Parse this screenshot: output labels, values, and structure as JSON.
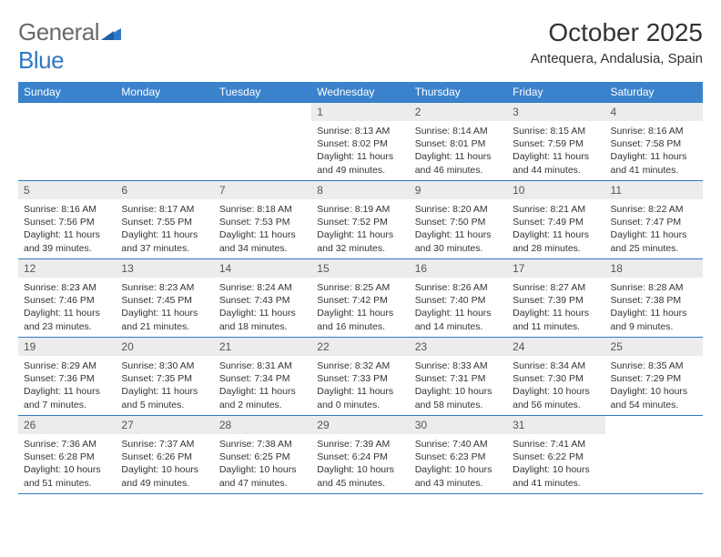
{
  "brand": {
    "name_part1": "General",
    "name_part2": "Blue"
  },
  "title": "October 2025",
  "location": "Antequera, Andalusia, Spain",
  "colors": {
    "header_bg": "#3a82cc",
    "header_text": "#ffffff",
    "row_border": "#2f78c4",
    "daynum_bg": "#ececec",
    "text": "#333333",
    "brand_gray": "#6a6a6a",
    "brand_blue": "#2f78c4",
    "page_bg": "#ffffff"
  },
  "typography": {
    "title_fontsize": 28,
    "location_fontsize": 15,
    "header_fontsize": 12,
    "daynum_fontsize": 12,
    "cell_fontsize": 10.5
  },
  "weekdays": [
    "Sunday",
    "Monday",
    "Tuesday",
    "Wednesday",
    "Thursday",
    "Friday",
    "Saturday"
  ],
  "weeks": [
    [
      {
        "empty": true
      },
      {
        "empty": true
      },
      {
        "empty": true
      },
      {
        "day": "1",
        "sunrise": "Sunrise: 8:13 AM",
        "sunset": "Sunset: 8:02 PM",
        "daylight": "Daylight: 11 hours and 49 minutes."
      },
      {
        "day": "2",
        "sunrise": "Sunrise: 8:14 AM",
        "sunset": "Sunset: 8:01 PM",
        "daylight": "Daylight: 11 hours and 46 minutes."
      },
      {
        "day": "3",
        "sunrise": "Sunrise: 8:15 AM",
        "sunset": "Sunset: 7:59 PM",
        "daylight": "Daylight: 11 hours and 44 minutes."
      },
      {
        "day": "4",
        "sunrise": "Sunrise: 8:16 AM",
        "sunset": "Sunset: 7:58 PM",
        "daylight": "Daylight: 11 hours and 41 minutes."
      }
    ],
    [
      {
        "day": "5",
        "sunrise": "Sunrise: 8:16 AM",
        "sunset": "Sunset: 7:56 PM",
        "daylight": "Daylight: 11 hours and 39 minutes."
      },
      {
        "day": "6",
        "sunrise": "Sunrise: 8:17 AM",
        "sunset": "Sunset: 7:55 PM",
        "daylight": "Daylight: 11 hours and 37 minutes."
      },
      {
        "day": "7",
        "sunrise": "Sunrise: 8:18 AM",
        "sunset": "Sunset: 7:53 PM",
        "daylight": "Daylight: 11 hours and 34 minutes."
      },
      {
        "day": "8",
        "sunrise": "Sunrise: 8:19 AM",
        "sunset": "Sunset: 7:52 PM",
        "daylight": "Daylight: 11 hours and 32 minutes."
      },
      {
        "day": "9",
        "sunrise": "Sunrise: 8:20 AM",
        "sunset": "Sunset: 7:50 PM",
        "daylight": "Daylight: 11 hours and 30 minutes."
      },
      {
        "day": "10",
        "sunrise": "Sunrise: 8:21 AM",
        "sunset": "Sunset: 7:49 PM",
        "daylight": "Daylight: 11 hours and 28 minutes."
      },
      {
        "day": "11",
        "sunrise": "Sunrise: 8:22 AM",
        "sunset": "Sunset: 7:47 PM",
        "daylight": "Daylight: 11 hours and 25 minutes."
      }
    ],
    [
      {
        "day": "12",
        "sunrise": "Sunrise: 8:23 AM",
        "sunset": "Sunset: 7:46 PM",
        "daylight": "Daylight: 11 hours and 23 minutes."
      },
      {
        "day": "13",
        "sunrise": "Sunrise: 8:23 AM",
        "sunset": "Sunset: 7:45 PM",
        "daylight": "Daylight: 11 hours and 21 minutes."
      },
      {
        "day": "14",
        "sunrise": "Sunrise: 8:24 AM",
        "sunset": "Sunset: 7:43 PM",
        "daylight": "Daylight: 11 hours and 18 minutes."
      },
      {
        "day": "15",
        "sunrise": "Sunrise: 8:25 AM",
        "sunset": "Sunset: 7:42 PM",
        "daylight": "Daylight: 11 hours and 16 minutes."
      },
      {
        "day": "16",
        "sunrise": "Sunrise: 8:26 AM",
        "sunset": "Sunset: 7:40 PM",
        "daylight": "Daylight: 11 hours and 14 minutes."
      },
      {
        "day": "17",
        "sunrise": "Sunrise: 8:27 AM",
        "sunset": "Sunset: 7:39 PM",
        "daylight": "Daylight: 11 hours and 11 minutes."
      },
      {
        "day": "18",
        "sunrise": "Sunrise: 8:28 AM",
        "sunset": "Sunset: 7:38 PM",
        "daylight": "Daylight: 11 hours and 9 minutes."
      }
    ],
    [
      {
        "day": "19",
        "sunrise": "Sunrise: 8:29 AM",
        "sunset": "Sunset: 7:36 PM",
        "daylight": "Daylight: 11 hours and 7 minutes."
      },
      {
        "day": "20",
        "sunrise": "Sunrise: 8:30 AM",
        "sunset": "Sunset: 7:35 PM",
        "daylight": "Daylight: 11 hours and 5 minutes."
      },
      {
        "day": "21",
        "sunrise": "Sunrise: 8:31 AM",
        "sunset": "Sunset: 7:34 PM",
        "daylight": "Daylight: 11 hours and 2 minutes."
      },
      {
        "day": "22",
        "sunrise": "Sunrise: 8:32 AM",
        "sunset": "Sunset: 7:33 PM",
        "daylight": "Daylight: 11 hours and 0 minutes."
      },
      {
        "day": "23",
        "sunrise": "Sunrise: 8:33 AM",
        "sunset": "Sunset: 7:31 PM",
        "daylight": "Daylight: 10 hours and 58 minutes."
      },
      {
        "day": "24",
        "sunrise": "Sunrise: 8:34 AM",
        "sunset": "Sunset: 7:30 PM",
        "daylight": "Daylight: 10 hours and 56 minutes."
      },
      {
        "day": "25",
        "sunrise": "Sunrise: 8:35 AM",
        "sunset": "Sunset: 7:29 PM",
        "daylight": "Daylight: 10 hours and 54 minutes."
      }
    ],
    [
      {
        "day": "26",
        "sunrise": "Sunrise: 7:36 AM",
        "sunset": "Sunset: 6:28 PM",
        "daylight": "Daylight: 10 hours and 51 minutes."
      },
      {
        "day": "27",
        "sunrise": "Sunrise: 7:37 AM",
        "sunset": "Sunset: 6:26 PM",
        "daylight": "Daylight: 10 hours and 49 minutes."
      },
      {
        "day": "28",
        "sunrise": "Sunrise: 7:38 AM",
        "sunset": "Sunset: 6:25 PM",
        "daylight": "Daylight: 10 hours and 47 minutes."
      },
      {
        "day": "29",
        "sunrise": "Sunrise: 7:39 AM",
        "sunset": "Sunset: 6:24 PM",
        "daylight": "Daylight: 10 hours and 45 minutes."
      },
      {
        "day": "30",
        "sunrise": "Sunrise: 7:40 AM",
        "sunset": "Sunset: 6:23 PM",
        "daylight": "Daylight: 10 hours and 43 minutes."
      },
      {
        "day": "31",
        "sunrise": "Sunrise: 7:41 AM",
        "sunset": "Sunset: 6:22 PM",
        "daylight": "Daylight: 10 hours and 41 minutes."
      },
      {
        "empty": true
      }
    ]
  ]
}
